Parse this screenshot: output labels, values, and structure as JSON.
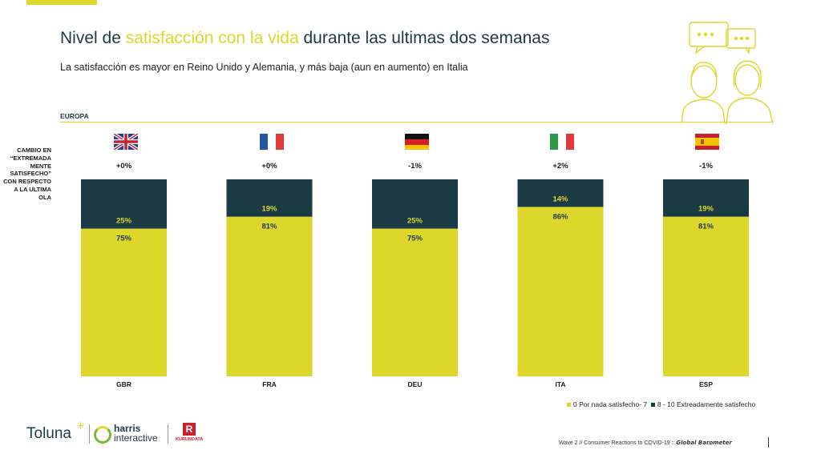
{
  "header": {
    "title_before": "Nivel de ",
    "title_highlight": "satisfacción con la vida",
    "title_after": " durante las ultimas dos semanas",
    "subtitle": "La satisfacción es mayor en Reino Unido  y Alemania, y más baja (aun en aumento) en Italia",
    "region": "EUROPA"
  },
  "side_note": "CAMBIO EN “EXTREMADA MENTE SATISFECHO” CON RESPECTO A LA ULTIMA OLA",
  "colors": {
    "accent": "#dcd72a",
    "dark": "#1c3a44"
  },
  "chart_data": {
    "type": "bar",
    "stacked": true,
    "categories": [
      "GBR",
      "FRA",
      "DEU",
      "ITA",
      "ESP"
    ],
    "flags": [
      "uk-flag-icon",
      "france-flag-icon",
      "germany-flag-icon",
      "italy-flag-icon",
      "spain-flag-icon"
    ],
    "changes": [
      "+0%",
      "+0%",
      "-1%",
      "+2%",
      "-1%"
    ],
    "series": [
      {
        "name": "0 Por nada satisfecho- 7",
        "color": "#dcd72a",
        "values": [
          75,
          81,
          75,
          86,
          81
        ]
      },
      {
        "name": "8 - 10 Extreadamente satisfecho",
        "color": "#1a3a44",
        "values": [
          25,
          19,
          25,
          14,
          19
        ]
      }
    ],
    "value_labels": [
      [
        "75%",
        "81%",
        "75%",
        "86%",
        "81%"
      ],
      [
        "25%",
        "19%",
        "25%",
        "14%",
        "19%"
      ]
    ],
    "ylim": [
      0,
      100
    ],
    "legend_position": "bottom-right"
  },
  "footer": {
    "text": "Wave 2 // Consumer Reactions to COVID-19 :: ",
    "brand": "Global Barometer"
  },
  "logos": {
    "toluna": "Toluna",
    "harris_1": "harris",
    "harris_2": "interactive",
    "kurundata": "KURUNDATA"
  }
}
